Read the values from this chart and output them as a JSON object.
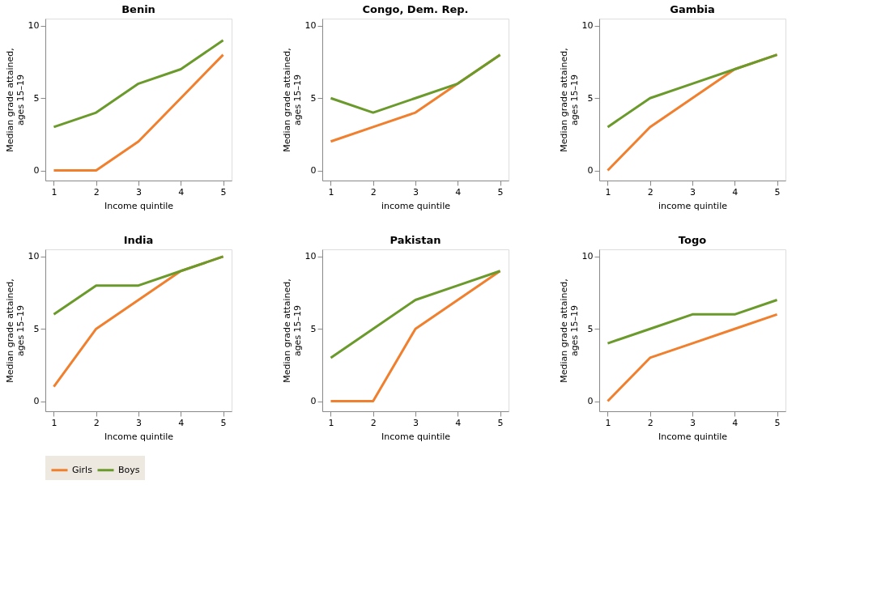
{
  "chart_data": [
    {
      "type": "line",
      "title": "Benin",
      "xlabel": "Income quintile",
      "ylabel": "Median grade attained,\nages 15–19",
      "x": [
        1,
        2,
        3,
        4,
        5
      ],
      "xlim": [
        0.8,
        5.2
      ],
      "xticks": [
        1,
        2,
        3,
        4,
        5
      ],
      "ylim": [
        -0.7,
        10.5
      ],
      "yticks": [
        0,
        5,
        10
      ],
      "grid": false,
      "legend": "bottom",
      "line_style": "solid",
      "series": [
        {
          "name": "Girls",
          "color": "#f07f2e",
          "values": [
            0,
            0,
            2,
            5,
            8
          ]
        },
        {
          "name": "Boys",
          "color": "#6b9a2c",
          "values": [
            3,
            4,
            6,
            7,
            9
          ]
        }
      ]
    },
    {
      "type": "line",
      "title": "Congo, Dem. Rep.",
      "xlabel": "income quintile",
      "ylabel": "Median grade attained,\nages 15–19",
      "x": [
        1,
        2,
        3,
        4,
        5
      ],
      "xlim": [
        0.8,
        5.2
      ],
      "xticks": [
        1,
        2,
        3,
        4,
        5
      ],
      "ylim": [
        -0.7,
        10.5
      ],
      "yticks": [
        0,
        5,
        10
      ],
      "grid": false,
      "legend": "bottom",
      "line_style": "solid",
      "series": [
        {
          "name": "Girls",
          "color": "#f07f2e",
          "values": [
            2,
            3,
            4,
            6,
            8
          ]
        },
        {
          "name": "Boys",
          "color": "#6b9a2c",
          "values": [
            5,
            4,
            5,
            6,
            8
          ]
        }
      ]
    },
    {
      "type": "line",
      "title": "Gambia",
      "xlabel": "income quintile",
      "ylabel": "Median grade attained,\nages 15–19",
      "x": [
        1,
        2,
        3,
        4,
        5
      ],
      "xlim": [
        0.8,
        5.2
      ],
      "xticks": [
        1,
        2,
        3,
        4,
        5
      ],
      "ylim": [
        -0.7,
        10.5
      ],
      "yticks": [
        0,
        5,
        10
      ],
      "grid": false,
      "legend": "bottom",
      "line_style": "solid",
      "series": [
        {
          "name": "Girls",
          "color": "#f07f2e",
          "values": [
            0,
            3,
            5,
            7,
            8
          ]
        },
        {
          "name": "Boys",
          "color": "#6b9a2c",
          "values": [
            3,
            5,
            6,
            7,
            8
          ]
        }
      ]
    },
    {
      "type": "line",
      "title": "India",
      "xlabel": "Income quintile",
      "ylabel": "Median grade attained,\nages 15–19",
      "x": [
        1,
        2,
        3,
        4,
        5
      ],
      "xlim": [
        0.8,
        5.2
      ],
      "xticks": [
        1,
        2,
        3,
        4,
        5
      ],
      "ylim": [
        -0.7,
        10.5
      ],
      "yticks": [
        0,
        5,
        10
      ],
      "grid": false,
      "legend": "bottom",
      "line_style": "solid",
      "series": [
        {
          "name": "Girls",
          "color": "#f07f2e",
          "values": [
            1,
            5,
            7,
            9,
            10
          ]
        },
        {
          "name": "Boys",
          "color": "#6b9a2c",
          "values": [
            6,
            8,
            8,
            9,
            10
          ]
        }
      ]
    },
    {
      "type": "line",
      "title": "Pakistan",
      "xlabel": "Income quintile",
      "ylabel": "Median grade attained,\nages 15–19",
      "x": [
        1,
        2,
        3,
        4,
        5
      ],
      "xlim": [
        0.8,
        5.2
      ],
      "xticks": [
        1,
        2,
        3,
        4,
        5
      ],
      "ylim": [
        -0.7,
        10.5
      ],
      "yticks": [
        0,
        5,
        10
      ],
      "grid": false,
      "legend": "bottom",
      "line_style": "solid",
      "series": [
        {
          "name": "Girls",
          "color": "#f07f2e",
          "values": [
            0,
            0,
            5,
            7,
            9
          ]
        },
        {
          "name": "Boys",
          "color": "#6b9a2c",
          "values": [
            3,
            5,
            7,
            8,
            9
          ]
        }
      ]
    },
    {
      "type": "line",
      "title": "Togo",
      "xlabel": "Income quintile",
      "ylabel": "Median grade attained,\nages 15–19",
      "x": [
        1,
        2,
        3,
        4,
        5
      ],
      "xlim": [
        0.8,
        5.2
      ],
      "xticks": [
        1,
        2,
        3,
        4,
        5
      ],
      "ylim": [
        -0.7,
        10.5
      ],
      "yticks": [
        0,
        5,
        10
      ],
      "grid": false,
      "legend": "bottom",
      "line_style": "solid",
      "series": [
        {
          "name": "Girls",
          "color": "#f07f2e",
          "values": [
            0,
            3,
            4,
            5,
            6
          ]
        },
        {
          "name": "Boys",
          "color": "#6b9a2c",
          "values": [
            4,
            5,
            6,
            6,
            7
          ]
        }
      ]
    }
  ]
}
